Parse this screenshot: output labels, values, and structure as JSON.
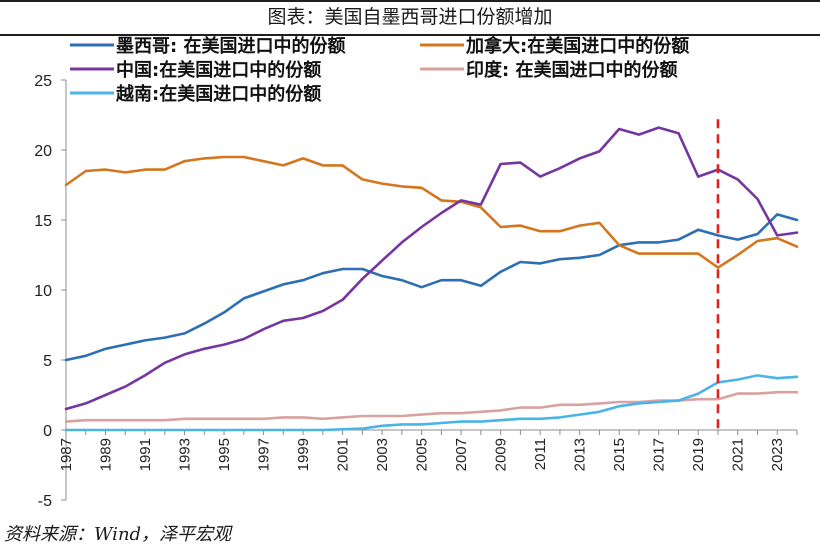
{
  "chart_data": {
    "type": "line",
    "title": "图表：美国自墨西哥进口份额增加",
    "source": "资料来源：Wind，泽平宏观",
    "ylim": [
      -5,
      25
    ],
    "yticks": [
      -5,
      0,
      5,
      10,
      15,
      20,
      25
    ],
    "xlim": [
      1987,
      2024
    ],
    "xticks": [
      1987,
      1989,
      1991,
      1993,
      1995,
      1997,
      1999,
      2001,
      2003,
      2005,
      2007,
      2009,
      2011,
      2013,
      2015,
      2017,
      2019,
      2021,
      2023
    ],
    "vline_x": 2020,
    "vline_color": "#e0201f",
    "grid": false,
    "legend_position": "top",
    "x": [
      1987,
      1988,
      1989,
      1990,
      1991,
      1992,
      1993,
      1994,
      1995,
      1996,
      1997,
      1998,
      1999,
      2000,
      2001,
      2002,
      2003,
      2004,
      2005,
      2006,
      2007,
      2008,
      2009,
      2010,
      2011,
      2012,
      2013,
      2014,
      2015,
      2016,
      2017,
      2018,
      2019,
      2020,
      2021,
      2022,
      2023,
      2024
    ],
    "series": [
      {
        "name": "墨西哥: 在美国进口中的份额",
        "color": "#2e6fb3",
        "values": [
          5.0,
          5.3,
          5.8,
          6.1,
          6.4,
          6.6,
          6.9,
          7.6,
          8.4,
          9.4,
          9.9,
          10.4,
          10.7,
          11.2,
          11.5,
          11.5,
          11.0,
          10.7,
          10.2,
          10.7,
          10.7,
          10.3,
          11.3,
          12.0,
          11.9,
          12.2,
          12.3,
          12.5,
          13.2,
          13.4,
          13.4,
          13.6,
          14.3,
          13.9,
          13.6,
          14.0,
          15.4,
          15.0
        ]
      },
      {
        "name": "加拿大:在美国进口中的份额",
        "color": "#d4761e",
        "values": [
          17.5,
          18.5,
          18.6,
          18.4,
          18.6,
          18.6,
          19.2,
          19.4,
          19.5,
          19.5,
          19.2,
          18.9,
          19.4,
          18.9,
          18.9,
          17.9,
          17.6,
          17.4,
          17.3,
          16.4,
          16.3,
          15.9,
          14.5,
          14.6,
          14.2,
          14.2,
          14.6,
          14.8,
          13.2,
          12.6,
          12.6,
          12.6,
          12.6,
          11.6,
          12.5,
          13.5,
          13.7,
          13.1
        ]
      },
      {
        "name": "中国:在美国进口中的份额",
        "color": "#7636a0",
        "values": [
          1.5,
          1.9,
          2.5,
          3.1,
          3.9,
          4.8,
          5.4,
          5.8,
          6.1,
          6.5,
          7.2,
          7.8,
          8.0,
          8.5,
          9.3,
          10.8,
          12.1,
          13.4,
          14.5,
          15.5,
          16.4,
          16.1,
          19.0,
          19.1,
          18.1,
          18.7,
          19.4,
          19.9,
          21.5,
          21.1,
          21.6,
          21.2,
          18.1,
          18.6,
          17.9,
          16.5,
          13.9,
          14.1
        ]
      },
      {
        "name": "印度: 在美国进口中的份额",
        "color": "#d9a2a0",
        "values": [
          0.6,
          0.7,
          0.7,
          0.7,
          0.7,
          0.7,
          0.8,
          0.8,
          0.8,
          0.8,
          0.8,
          0.9,
          0.9,
          0.8,
          0.9,
          1.0,
          1.0,
          1.0,
          1.1,
          1.2,
          1.2,
          1.3,
          1.4,
          1.6,
          1.6,
          1.8,
          1.8,
          1.9,
          2.0,
          2.0,
          2.1,
          2.1,
          2.2,
          2.2,
          2.6,
          2.6,
          2.7,
          2.7
        ]
      },
      {
        "name": "越南:在美国进口中的份额",
        "color": "#4bb4e6",
        "values": [
          0.0,
          0.0,
          0.0,
          0.0,
          0.0,
          0.0,
          0.0,
          0.0,
          0.0,
          0.0,
          0.0,
          0.0,
          0.0,
          0.0,
          0.05,
          0.1,
          0.3,
          0.4,
          0.4,
          0.5,
          0.6,
          0.6,
          0.7,
          0.8,
          0.8,
          0.9,
          1.1,
          1.3,
          1.7,
          1.9,
          2.0,
          2.1,
          2.6,
          3.4,
          3.6,
          3.9,
          3.7,
          3.8
        ]
      }
    ]
  }
}
